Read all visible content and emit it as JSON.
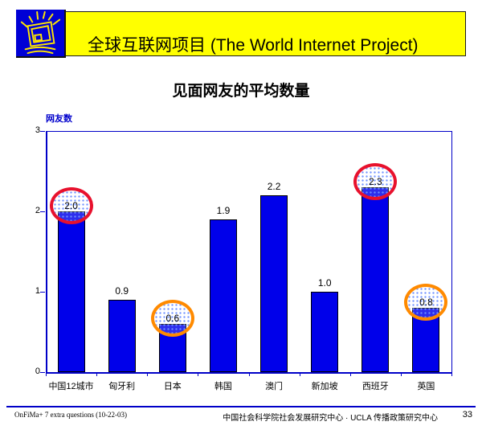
{
  "header": {
    "title": "全球互联网项目 (The World Internet Project)",
    "banner_color": "#ffff00",
    "logo_bg_color": "#0000d6",
    "logo_icon": "shining-monitor-icon"
  },
  "chart_data": {
    "type": "bar",
    "title": "见面网友的平均数量",
    "ylabel": "网友数",
    "xlabel": "",
    "categories": [
      "中国12城市",
      "匈牙利",
      "日本",
      "韩国",
      "澳门",
      "新加坡",
      "西班牙",
      "英国"
    ],
    "values": [
      2.0,
      0.9,
      0.6,
      1.9,
      2.2,
      1.0,
      2.3,
      0.8
    ],
    "value_labels": [
      "2.0",
      "0.9",
      "0.6",
      "1.9",
      "2.2",
      "1.0",
      "2.3",
      "0.8"
    ],
    "ylim": [
      0,
      3
    ],
    "yticks": [
      0,
      1,
      2,
      3
    ],
    "grid": false,
    "legend": "none",
    "bar_color": "#0000ea",
    "bar_border_color": "#000000",
    "axis_color": "#0000c8",
    "annotations": [
      {
        "index": 0,
        "shape": "ellipse",
        "circle_color": "#e8112d"
      },
      {
        "index": 2,
        "shape": "ellipse",
        "circle_color": "#ff8a00"
      },
      {
        "index": 6,
        "shape": "ellipse",
        "circle_color": "#e8112d"
      },
      {
        "index": 7,
        "shape": "ellipse",
        "circle_color": "#ff8a00"
      }
    ]
  },
  "footer": {
    "left_note": "OnFiMa+ 7 extra questions (10-22-03)",
    "center_source": "中国社会科学院社会发展研究中心 · UCLA 传播政策研究中心",
    "page_number": "33"
  }
}
